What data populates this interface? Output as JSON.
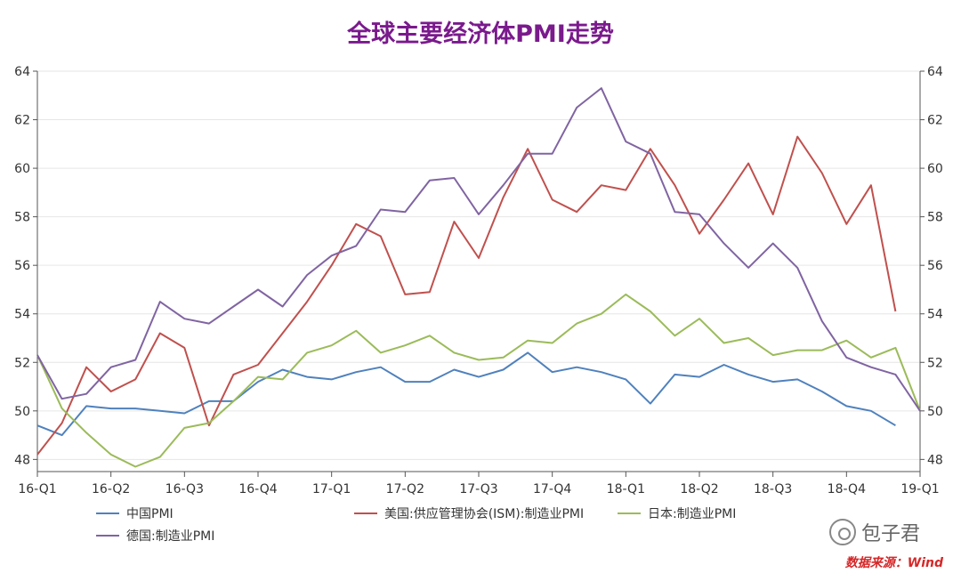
{
  "chart_data": {
    "type": "line",
    "title": "全球主要经济体PMI走势",
    "xlabel": "",
    "ylabel": "",
    "ylim": [
      47.5,
      64
    ],
    "y_ticks": [
      48,
      50,
      52,
      54,
      56,
      58,
      60,
      62,
      64
    ],
    "x_tick_labels": [
      "16-Q1",
      "16-Q2",
      "16-Q3",
      "16-Q4",
      "17-Q1",
      "17-Q2",
      "17-Q3",
      "17-Q4",
      "18-Q1",
      "18-Q2",
      "18-Q3",
      "18-Q4",
      "19-Q1"
    ],
    "grid": true,
    "legend_position": "bottom",
    "series": [
      {
        "name": "中国PMI",
        "color": "#4f81bd",
        "values": [
          49.4,
          49.0,
          50.2,
          50.1,
          50.1,
          50.0,
          49.9,
          50.4,
          50.4,
          51.2,
          51.7,
          51.4,
          51.3,
          51.6,
          51.8,
          51.2,
          51.2,
          51.7,
          51.4,
          51.7,
          52.4,
          51.6,
          51.8,
          51.6,
          51.3,
          50.3,
          51.5,
          51.4,
          51.9,
          51.5,
          51.2,
          51.3,
          50.8,
          50.2,
          50.0,
          49.4
        ]
      },
      {
        "name": "美国:供应管理协会(ISM):制造业PMI",
        "color": "#c0504d",
        "values": [
          48.2,
          49.5,
          51.8,
          50.8,
          51.3,
          53.2,
          52.6,
          49.4,
          51.5,
          51.9,
          53.2,
          54.5,
          56.0,
          57.7,
          57.2,
          54.8,
          54.9,
          57.8,
          56.3,
          58.8,
          60.8,
          58.7,
          58.2,
          59.3,
          59.1,
          60.8,
          59.3,
          57.3,
          58.7,
          60.2,
          58.1,
          61.3,
          59.8,
          57.7,
          59.3,
          54.1
        ]
      },
      {
        "name": "日本:制造业PMI",
        "color": "#9bbb59",
        "values": [
          52.3,
          50.1,
          49.1,
          48.2,
          47.7,
          48.1,
          49.3,
          49.5,
          50.4,
          51.4,
          51.3,
          52.4,
          52.7,
          53.3,
          52.4,
          52.7,
          53.1,
          52.4,
          52.1,
          52.2,
          52.9,
          52.8,
          53.6,
          54.0,
          54.8,
          54.1,
          53.1,
          53.8,
          52.8,
          53.0,
          52.3,
          52.5,
          52.5,
          52.9,
          52.2,
          52.6,
          50.0
        ]
      },
      {
        "name": "德国:制造业PMI",
        "color": "#8064a2",
        "values": [
          52.3,
          50.5,
          50.7,
          51.8,
          52.1,
          54.5,
          53.8,
          53.6,
          54.3,
          55.0,
          54.3,
          55.6,
          56.4,
          56.8,
          58.3,
          58.2,
          59.5,
          59.6,
          58.1,
          59.3,
          60.6,
          60.6,
          62.5,
          63.3,
          61.1,
          60.6,
          58.2,
          58.1,
          56.9,
          55.9,
          56.9,
          55.9,
          53.7,
          52.2,
          51.8,
          51.5,
          50.0
        ]
      }
    ]
  },
  "source_note": "数据来源：Wind",
  "watermark": "包子君"
}
